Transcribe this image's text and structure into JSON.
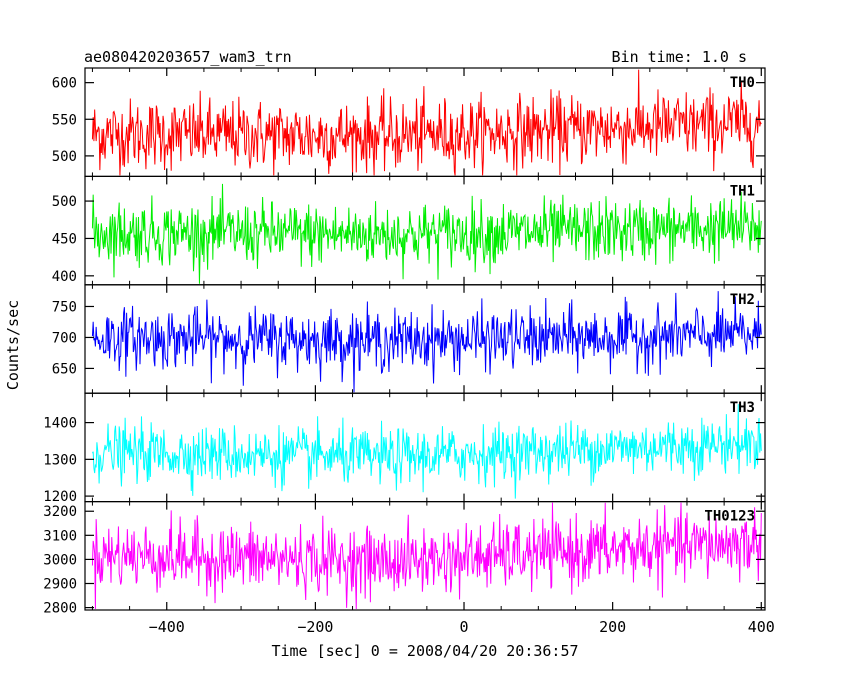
{
  "header": {
    "title": "ae080420203657_wam3_trn",
    "bin_time": "Bin time: 1.0 s"
  },
  "chart_data": {
    "type": "line",
    "xlabel": "Time [sec] 0 = 2008/04/20 20:36:57",
    "ylabel": "Counts/sec",
    "xlim": [
      -510,
      405
    ],
    "x_ticks": [
      -400,
      -200,
      0,
      200,
      400
    ],
    "x_tick_labels": [
      "−400",
      "−200",
      "0",
      "200",
      "400"
    ],
    "x_range": [
      -500,
      400
    ],
    "bin_time_s": 1.0,
    "panels": [
      {
        "name": "TH0",
        "color": "#ff0000",
        "ylim": [
          472,
          620
        ],
        "y_ticks": [
          500,
          550,
          600
        ],
        "mean": 533,
        "noise_sigma": 24,
        "trend": [
          [
            -500,
            530
          ],
          [
            -100,
            527
          ],
          [
            200,
            538
          ],
          [
            400,
            545
          ]
        ]
      },
      {
        "name": "TH1",
        "color": "#00ee00",
        "ylim": [
          388,
          533
        ],
        "y_ticks": [
          400,
          450,
          500
        ],
        "mean": 458,
        "noise_sigma": 21,
        "trend": [
          [
            -500,
            458
          ],
          [
            -100,
            455
          ],
          [
            200,
            460
          ],
          [
            400,
            465
          ]
        ]
      },
      {
        "name": "TH2",
        "color": "#0000ff",
        "ylim": [
          610,
          785
        ],
        "y_ticks": [
          650,
          700,
          750
        ],
        "mean": 700,
        "noise_sigma": 24,
        "trend": [
          [
            -500,
            700
          ],
          [
            -100,
            695
          ],
          [
            200,
            700
          ],
          [
            400,
            705
          ]
        ]
      },
      {
        "name": "TH3",
        "color": "#00ffff",
        "ylim": [
          1185,
          1480
        ],
        "y_ticks": [
          1200,
          1300,
          1400
        ],
        "mean": 1320,
        "noise_sigma": 38,
        "trend": [
          [
            -500,
            1320
          ],
          [
            -100,
            1305
          ],
          [
            200,
            1330
          ],
          [
            400,
            1345
          ]
        ]
      },
      {
        "name": "TH0123",
        "color": "#ff00ff",
        "ylim": [
          2790,
          3240
        ],
        "y_ticks": [
          2800,
          2900,
          3000,
          3100,
          3200
        ],
        "mean": 3020,
        "noise_sigma": 70,
        "trend": [
          [
            -500,
            3020
          ],
          [
            -100,
            2990
          ],
          [
            200,
            3040
          ],
          [
            400,
            3070
          ]
        ]
      }
    ]
  }
}
